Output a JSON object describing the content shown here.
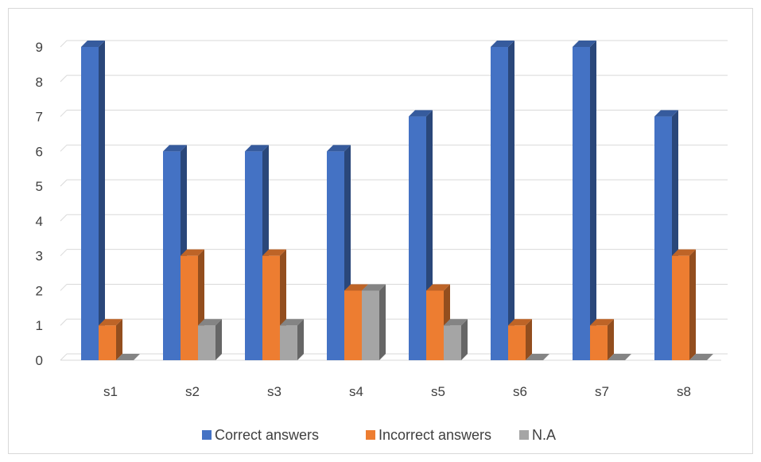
{
  "chart_data": {
    "type": "bar",
    "categories": [
      "s1",
      "s2",
      "s3",
      "s4",
      "s5",
      "s6",
      "s7",
      "s8"
    ],
    "series": [
      {
        "name": "Correct answers",
        "values": [
          9,
          6,
          6,
          6,
          7,
          9,
          9,
          7
        ],
        "color": "#4472c4"
      },
      {
        "name": "Incorrect answers",
        "values": [
          1,
          3,
          3,
          2,
          2,
          1,
          1,
          3
        ],
        "color": "#ed7d31"
      },
      {
        "name": "N.A",
        "values": [
          0,
          1,
          1,
          2,
          1,
          0,
          0,
          0
        ],
        "color": "#a5a5a5"
      }
    ],
    "ylim": [
      0,
      9
    ],
    "yticks": [
      0,
      1,
      2,
      3,
      4,
      5,
      6,
      7,
      8,
      9
    ],
    "grid": true,
    "legend_position": "bottom",
    "style": "3d-clustered-column"
  }
}
